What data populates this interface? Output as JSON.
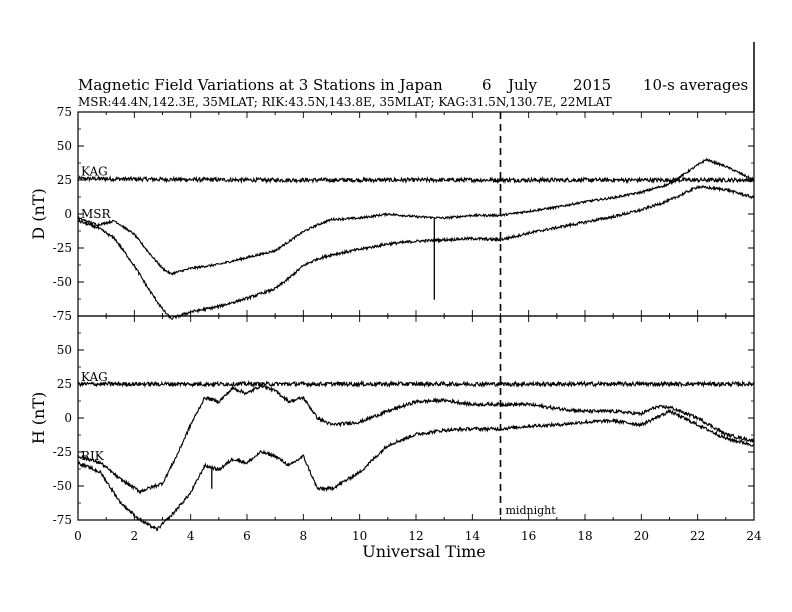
{
  "chart_data": {
    "type": "line",
    "title": "Magnetic Field Variations at 3 Stations in Japan",
    "date_day": "6",
    "date_month": "July",
    "date_year": "2015",
    "resolution": "10-s averages",
    "subtitle": "MSR:44.4N,142.3E, 35MLAT;  RIK:43.5N,143.8E, 35MLAT;  KAG:31.5N,130.7E, 22MLAT",
    "xlabel": "Universal Time",
    "xlim": [
      0,
      24
    ],
    "x_ticks": [
      "0",
      "2",
      "4",
      "6",
      "8",
      "10",
      "12",
      "14",
      "16",
      "18",
      "20",
      "22",
      "24"
    ],
    "midnight": {
      "x": 15,
      "label": "midnight"
    },
    "grid": false,
    "panels": [
      {
        "name": "D",
        "ylabel": "D (nT)",
        "ylim": [
          -75,
          75
        ],
        "y_ticks": [
          "75",
          "50",
          "25",
          "0",
          "-25",
          "-50",
          "-75"
        ],
        "series": [
          {
            "name": "KAG",
            "noise": 1.5,
            "points": [
              [
                0,
                26
              ],
              [
                6,
                25
              ],
              [
                12,
                25
              ],
              [
                18,
                25
              ],
              [
                24,
                25
              ]
            ]
          },
          {
            "name": "",
            "noise": 0.8,
            "points": [
              [
                0,
                -3
              ],
              [
                0.7,
                -8
              ],
              [
                1.3,
                -5
              ],
              [
                2,
                -15
              ],
              [
                2.5,
                -28
              ],
              [
                3,
                -40
              ],
              [
                3.3,
                -44
              ],
              [
                4,
                -40
              ],
              [
                5,
                -37
              ],
              [
                6,
                -32
              ],
              [
                7,
                -27
              ],
              [
                7.5,
                -20
              ],
              [
                8,
                -13
              ],
              [
                8.5,
                -8
              ],
              [
                9,
                -4
              ],
              [
                10,
                -3
              ],
              [
                11,
                0
              ],
              [
                12,
                -2
              ],
              [
                13,
                -3
              ],
              [
                14,
                -1
              ],
              [
                15,
                -1
              ],
              [
                16,
                2
              ],
              [
                17,
                5
              ],
              [
                18,
                9
              ],
              [
                19,
                12
              ],
              [
                20,
                16
              ],
              [
                21,
                22
              ],
              [
                22,
                36
              ],
              [
                22.3,
                40
              ],
              [
                23,
                35
              ],
              [
                24,
                25
              ]
            ]
          },
          {
            "name": "MSR",
            "noise": 1.0,
            "points": [
              [
                0,
                -5
              ],
              [
                0.7,
                -10
              ],
              [
                1.3,
                -18
              ],
              [
                2,
                -38
              ],
              [
                2.5,
                -55
              ],
              [
                3,
                -70
              ],
              [
                3.3,
                -77
              ],
              [
                4,
                -72
              ],
              [
                5,
                -68
              ],
              [
                6,
                -62
              ],
              [
                7,
                -55
              ],
              [
                7.5,
                -47
              ],
              [
                8,
                -38
              ],
              [
                8.5,
                -33
              ],
              [
                9,
                -30
              ],
              [
                10,
                -26
              ],
              [
                11,
                -22
              ],
              [
                12,
                -20
              ],
              [
                13,
                -19
              ],
              [
                14,
                -18
              ],
              [
                15,
                -19
              ],
              [
                16,
                -14
              ],
              [
                17,
                -10
              ],
              [
                18,
                -6
              ],
              [
                19,
                -2
              ],
              [
                20,
                3
              ],
              [
                21,
                10
              ],
              [
                22,
                20
              ],
              [
                23,
                18
              ],
              [
                24,
                12
              ]
            ]
          }
        ],
        "spike": {
          "x": 12.65,
          "from": -3,
          "to": -63
        }
      },
      {
        "name": "H",
        "ylabel": "H (nT)",
        "ylim": [
          -75,
          75
        ],
        "y_ticks": [
          "75",
          "50",
          "25",
          "0",
          "-25",
          "-50",
          "-75"
        ],
        "series": [
          {
            "name": "KAG",
            "noise": 1.5,
            "points": [
              [
                0,
                25
              ],
              [
                6,
                25
              ],
              [
                12,
                25
              ],
              [
                18,
                25
              ],
              [
                24,
                25
              ]
            ]
          },
          {
            "name": "",
            "noise": 1.2,
            "points": [
              [
                0,
                -28
              ],
              [
                0.8,
                -33
              ],
              [
                1.5,
                -45
              ],
              [
                2.2,
                -54
              ],
              [
                3,
                -48
              ],
              [
                3.5,
                -28
              ],
              [
                4,
                -5
              ],
              [
                4.5,
                15
              ],
              [
                5,
                12
              ],
              [
                5.5,
                22
              ],
              [
                6,
                18
              ],
              [
                6.5,
                24
              ],
              [
                7,
                20
              ],
              [
                7.5,
                12
              ],
              [
                8,
                15
              ],
              [
                8.5,
                0
              ],
              [
                9,
                -5
              ],
              [
                10,
                -3
              ],
              [
                11,
                5
              ],
              [
                12,
                12
              ],
              [
                13,
                13
              ],
              [
                14,
                10
              ],
              [
                15,
                10
              ],
              [
                16,
                10
              ],
              [
                17,
                7
              ],
              [
                18,
                5
              ],
              [
                19,
                5
              ],
              [
                20,
                3
              ],
              [
                20.5,
                8
              ],
              [
                21,
                8
              ],
              [
                22,
                0
              ],
              [
                23,
                -12
              ],
              [
                24,
                -17
              ]
            ]
          },
          {
            "name": "RIK",
            "noise": 1.2,
            "points": [
              [
                0,
                -33
              ],
              [
                0.8,
                -40
              ],
              [
                1.5,
                -62
              ],
              [
                2.2,
                -75
              ],
              [
                2.8,
                -82
              ],
              [
                3.3,
                -72
              ],
              [
                4,
                -55
              ],
              [
                4.5,
                -35
              ],
              [
                5,
                -38
              ],
              [
                5.5,
                -30
              ],
              [
                6,
                -33
              ],
              [
                6.5,
                -25
              ],
              [
                7,
                -28
              ],
              [
                7.5,
                -35
              ],
              [
                8,
                -28
              ],
              [
                8.5,
                -52
              ],
              [
                9,
                -52
              ],
              [
                10,
                -40
              ],
              [
                11,
                -20
              ],
              [
                12,
                -12
              ],
              [
                13,
                -9
              ],
              [
                14,
                -8
              ],
              [
                15,
                -8
              ],
              [
                16,
                -6
              ],
              [
                17,
                -5
              ],
              [
                18,
                -3
              ],
              [
                19,
                -2
              ],
              [
                20,
                -5
              ],
              [
                21,
                5
              ],
              [
                22,
                -5
              ],
              [
                23,
                -15
              ],
              [
                24,
                -20
              ]
            ]
          }
        ],
        "spike": {
          "x": 4.75,
          "from": -38,
          "to": -52
        }
      }
    ]
  }
}
